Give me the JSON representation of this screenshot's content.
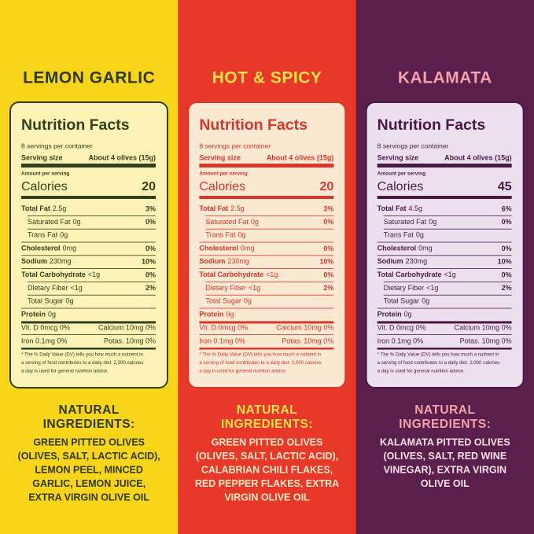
{
  "panels": [
    {
      "title": "LEMON GARLIC",
      "colors": {
        "background": "#f8d51b",
        "title": "#2e3a1b",
        "box": "#fdf3b6",
        "ink": "#33401d",
        "heading": "#2e3a1b",
        "text": "#2e3a1b"
      },
      "facts": {
        "heading": "Nutrition Facts",
        "servings": "8 servings per container",
        "serving_label": "Serving size",
        "serving_size": "About 4 olives (15g)",
        "amount_label": "Amount per serving",
        "calories_label": "Calories",
        "calories": "20",
        "rows": [
          {
            "label": "Total Fat",
            "amount": "2.5g",
            "dv": "3%"
          },
          {
            "label": "Saturated Fat",
            "amount": "0g",
            "dv": "0%"
          },
          {
            "label": "Trans Fat",
            "amount": "0g",
            "dv": ""
          },
          {
            "label": "Cholesterol",
            "amount": "0mg",
            "dv": "0%"
          },
          {
            "label": "Sodium",
            "amount": "230mg",
            "dv": "10%"
          },
          {
            "label": "Total Carbohydrate",
            "amount": "<1g",
            "dv": "0%"
          },
          {
            "label": "Dietary Fiber",
            "amount": "<1g",
            "dv": "2%"
          },
          {
            "label": "Total Sugar",
            "amount": "0g",
            "dv": ""
          },
          {
            "label": "Protein",
            "amount": "0g",
            "dv": ""
          }
        ],
        "minerals": [
          [
            "Vit. D 0mcg 0%",
            "Calcium 10mg 0%"
          ],
          [
            "Iron 0.1mg 0%",
            "Potas. 10mg 0%"
          ]
        ],
        "footnote": [
          "* The % Daily Value (DV) tells you how much a nutrient in",
          "a serving of food contributes to a daily diet. 2,000 calories",
          "a day is used for general nutrition advice."
        ]
      },
      "ingredients_heading": [
        "NATURAL",
        "INGREDIENTS:"
      ],
      "ingredients": [
        "GREEN PITTED OLIVES",
        "(OLIVES, SALT, LACTIC ACID),",
        "LEMON PEEL, MINCED",
        "GARLIC, LEMON JUICE,",
        "EXTRA VIRGIN OLIVE OIL"
      ]
    },
    {
      "title": "HOT & SPICY",
      "colors": {
        "background": "#e8382a",
        "title": "#fde14a",
        "box": "#fde8d3",
        "ink": "#d8372a",
        "heading": "#fde14a",
        "text": "#fde8c8"
      },
      "facts": {
        "heading": "Nutrition Facts",
        "servings": "8 servings per container",
        "serving_label": "Serving size",
        "serving_size": "About 4 olives (15g)",
        "amount_label": "Amount per serving",
        "calories_label": "Calories",
        "calories": "20",
        "rows": [
          {
            "label": "Total Fat",
            "amount": "2.5g",
            "dv": "3%"
          },
          {
            "label": "Saturated Fat",
            "amount": "0g",
            "dv": "0%"
          },
          {
            "label": "Trans Fat",
            "amount": "0g",
            "dv": ""
          },
          {
            "label": "Cholesterol",
            "amount": "0mg",
            "dv": "0%"
          },
          {
            "label": "Sodium",
            "amount": "230mg",
            "dv": "10%"
          },
          {
            "label": "Total Carbohydrate",
            "amount": "<1g",
            "dv": "0%"
          },
          {
            "label": "Dietary Fiber",
            "amount": "<1g",
            "dv": "2%"
          },
          {
            "label": "Total Sugar",
            "amount": "0g",
            "dv": ""
          },
          {
            "label": "Protein",
            "amount": "0g",
            "dv": ""
          }
        ],
        "minerals": [
          [
            "Vit. D 0mcg 0%",
            "Calcium 10mg 0%"
          ],
          [
            "Iron 0.1mg 0%",
            "Potas. 10mg 0%"
          ]
        ],
        "footnote": [
          "* The % Daily Value (DV) tells you how much a nutrient in",
          "a serving of food contributes to a daily diet. 2,000 calories",
          "a day is used for general nutrition advice."
        ]
      },
      "ingredients_heading": [
        "NATURAL",
        "INGREDIENTS:"
      ],
      "ingredients": [
        "GREEN PITTED OLIVES",
        "(OLIVES, SALT, LACTIC ACID),",
        "CALABRIAN CHILI FLAKES,",
        "RED PEPPER FLAKES, EXTRA",
        "VIRGIN OLIVE OIL"
      ]
    },
    {
      "title": "KALAMATA",
      "colors": {
        "background": "#5a1f4d",
        "title": "#f4a3a6",
        "box": "#ece0ef",
        "ink": "#4a1943",
        "heading": "#f4a3a6",
        "text": "#f9e1e2"
      },
      "facts": {
        "heading": "Nutrition Facts",
        "servings": "8 servings per container",
        "serving_label": "Serving size",
        "serving_size": "About 4 olives (15g)",
        "amount_label": "Amount per serving",
        "calories_label": "Calories",
        "calories": "45",
        "rows": [
          {
            "label": "Total Fat",
            "amount": "4.5g",
            "dv": "6%"
          },
          {
            "label": "Saturated Fat",
            "amount": "0g",
            "dv": "0%"
          },
          {
            "label": "Trans Fat",
            "amount": "0g",
            "dv": ""
          },
          {
            "label": "Cholesterol",
            "amount": "0mg",
            "dv": "0%"
          },
          {
            "label": "Sodium",
            "amount": "230mg",
            "dv": "10%"
          },
          {
            "label": "Total Carbohydrate",
            "amount": "<1g",
            "dv": "0%"
          },
          {
            "label": "Dietary Fiber",
            "amount": "<1g",
            "dv": "2%"
          },
          {
            "label": "Total Sugar",
            "amount": "0g",
            "dv": ""
          },
          {
            "label": "Protein",
            "amount": "0g",
            "dv": ""
          }
        ],
        "minerals": [
          [
            "Vit. D 0mcg 0%",
            "Calcium 10mg 0%"
          ],
          [
            "Iron 0.1mg 0%",
            "Potas. 10mg 0%"
          ]
        ],
        "footnote": [
          "* The % Daily Value (DV) tells you how much a nutrient in",
          "a serving of food contributes to a daily diet. 2,000 calories",
          "a day is used for general nutrition advice."
        ]
      },
      "ingredients_heading": [
        "NATURAL",
        "INGREDIENTS:"
      ],
      "ingredients": [
        "KALAMATA PITTED OLIVES",
        "(OLIVES, SALT, RED WINE",
        "VINEGAR), EXTRA VIRGIN",
        "OLIVE OIL"
      ]
    }
  ]
}
